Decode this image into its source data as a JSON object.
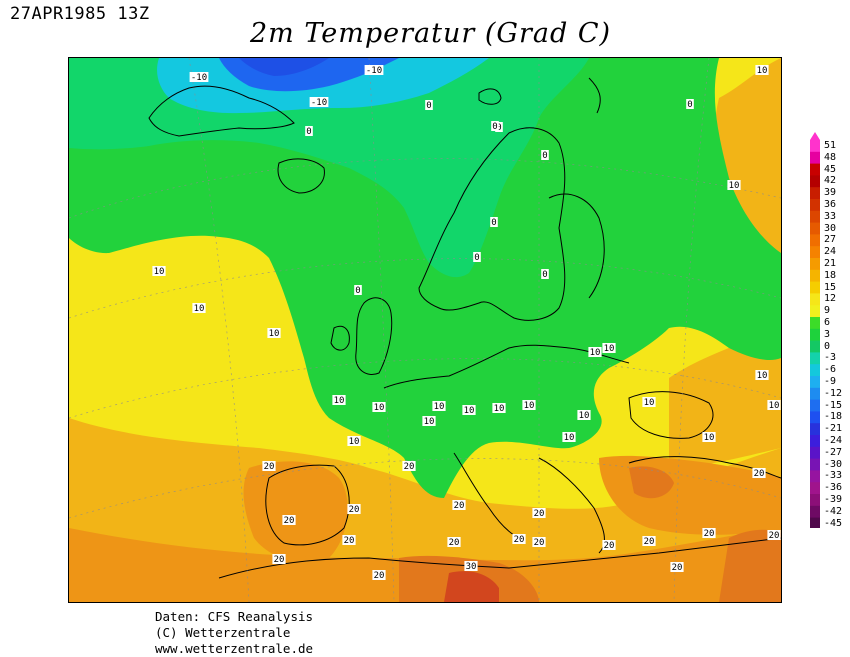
{
  "header": {
    "datetime": "27APR1985 13Z",
    "title": "2m Temperatur (Grad C)"
  },
  "footer": {
    "line1": "Daten: CFS Reanalysis",
    "line2": "(C) Wetterzentrale",
    "line3": "www.wetterzentrale.de"
  },
  "map": {
    "variable": "2m Temperatur",
    "unit": "Grad C",
    "colors": {
      "minus10": "#1e66f0",
      "minus5": "#14c8e0",
      "zero_band": "#12d66a",
      "green": "#22d23c",
      "yellow": "#f5e619",
      "lightorange": "#f2b417",
      "orange": "#ee9516",
      "darkorange": "#e2781c",
      "red": "#d2461e"
    },
    "contour_labels": [
      {
        "text": "-10"
      },
      {
        "text": "-10"
      },
      {
        "text": "-10"
      },
      {
        "text": "0"
      },
      {
        "text": "0"
      },
      {
        "text": "0"
      },
      {
        "text": "0"
      },
      {
        "text": "0"
      },
      {
        "text": "0"
      },
      {
        "text": "0"
      },
      {
        "text": "0"
      },
      {
        "text": "0"
      },
      {
        "text": "0"
      },
      {
        "text": "10"
      },
      {
        "text": "10"
      },
      {
        "text": "10"
      },
      {
        "text": "10"
      },
      {
        "text": "10"
      },
      {
        "text": "10"
      },
      {
        "text": "10"
      },
      {
        "text": "10"
      },
      {
        "text": "10"
      },
      {
        "text": "10"
      },
      {
        "text": "10"
      },
      {
        "text": "10"
      },
      {
        "text": "10"
      },
      {
        "text": "10"
      },
      {
        "text": "10"
      },
      {
        "text": "10"
      },
      {
        "text": "10"
      },
      {
        "text": "10"
      },
      {
        "text": "10"
      },
      {
        "text": "10"
      },
      {
        "text": "10"
      },
      {
        "text": "20"
      },
      {
        "text": "20"
      },
      {
        "text": "20"
      },
      {
        "text": "20"
      },
      {
        "text": "20"
      },
      {
        "text": "20"
      },
      {
        "text": "20"
      },
      {
        "text": "20"
      },
      {
        "text": "20"
      },
      {
        "text": "20"
      },
      {
        "text": "20"
      },
      {
        "text": "20"
      },
      {
        "text": "20"
      },
      {
        "text": "20"
      },
      {
        "text": "20"
      },
      {
        "text": "20"
      },
      {
        "text": "20"
      },
      {
        "text": "20"
      },
      {
        "text": "30"
      }
    ]
  },
  "legend": {
    "labels": [
      "51",
      "48",
      "45",
      "42",
      "39",
      "36",
      "33",
      "30",
      "27",
      "24",
      "21",
      "18",
      "15",
      "12",
      "9",
      "6",
      "3",
      "0",
      "-3",
      "-6",
      "-9",
      "-12",
      "-15",
      "-18",
      "-21",
      "-24",
      "-27",
      "-30",
      "-33",
      "-36",
      "-39",
      "-42",
      "-45"
    ],
    "colors": [
      "#ff33cc",
      "#e600a0",
      "#c80000",
      "#b40000",
      "#c81e00",
      "#d23200",
      "#dc4600",
      "#e65a00",
      "#f06e00",
      "#f58200",
      "#f59b00",
      "#f5b400",
      "#f5cd00",
      "#f5e619",
      "#f0f01e",
      "#3cdc28",
      "#1ed23c",
      "#14c864",
      "#14d2aa",
      "#14c8dc",
      "#1eaff0",
      "#1e8cf0",
      "#1e6ef0",
      "#1e50f0",
      "#2832dc",
      "#3c1edc",
      "#5a14c8",
      "#7814b4",
      "#9614a0",
      "#a0148c",
      "#8c0f78",
      "#6e0a64",
      "#50084b"
    ]
  }
}
